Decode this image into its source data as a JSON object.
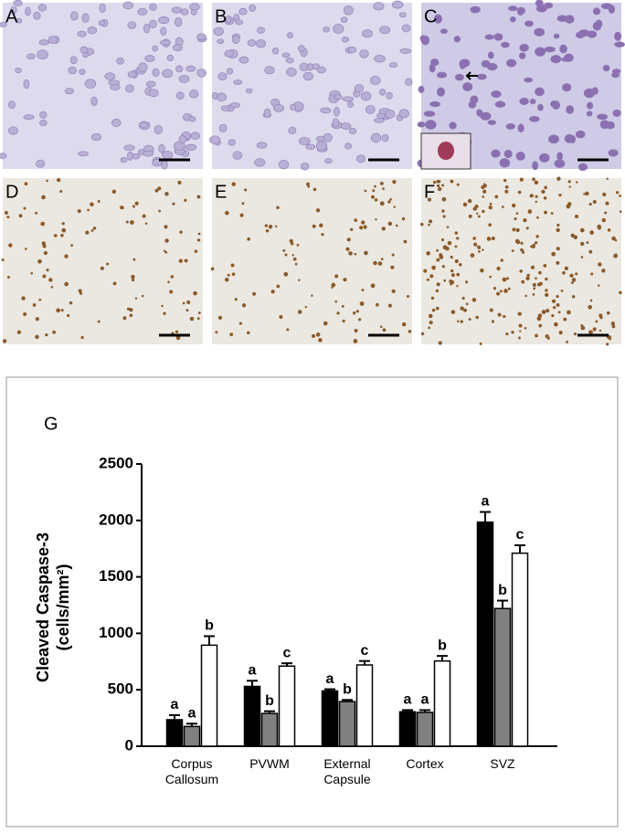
{
  "panels": [
    {
      "label": "A"
    },
    {
      "label": "B"
    },
    {
      "label": "C"
    },
    {
      "label": "D"
    },
    {
      "label": "E"
    },
    {
      "label": "F"
    }
  ],
  "chart_data": {
    "type": "bar",
    "panel_label": "G",
    "ylabel_lines": [
      "Cleaved Caspase-3",
      "(cells/mm²)"
    ],
    "categories": [
      "Corpus Callosum",
      "PVWM",
      "External Capsule",
      "Cortex",
      "SVZ"
    ],
    "series": [
      {
        "color": "#000000",
        "values": [
          235,
          530,
          490,
          305,
          1985
        ],
        "errors": [
          40,
          50,
          15,
          15,
          90
        ],
        "significance": [
          "a",
          "a",
          "a",
          "a",
          "a"
        ]
      },
      {
        "color": "#808080",
        "values": [
          175,
          290,
          395,
          300,
          1220
        ],
        "errors": [
          25,
          20,
          15,
          20,
          70
        ],
        "significance": [
          "a",
          "b",
          "b",
          "a",
          "b"
        ]
      },
      {
        "color": "#ffffff",
        "values": [
          895,
          710,
          720,
          755,
          1710
        ],
        "errors": [
          80,
          25,
          35,
          45,
          70
        ],
        "significance": [
          "b",
          "c",
          "c",
          "b",
          "c"
        ]
      }
    ],
    "ylim": [
      0,
      2500
    ],
    "yticks": [
      0,
      500,
      1000,
      1500,
      2000,
      2500
    ]
  }
}
